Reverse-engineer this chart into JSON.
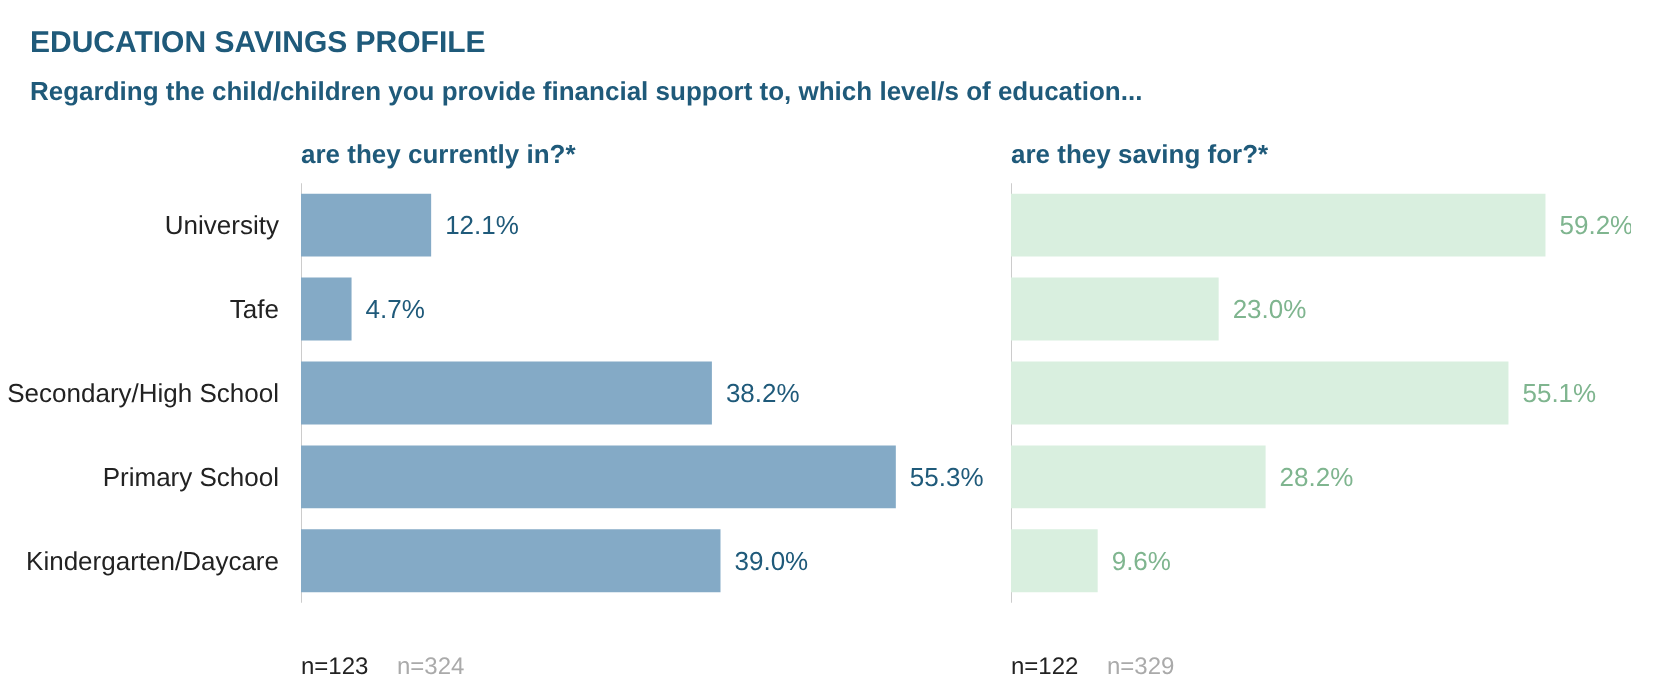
{
  "chart_data": [
    {
      "type": "other",
      "title": "EDUCATION SAVINGS PROFILE",
      "subtitle": "Regarding the child/children you provide financial support to, which level/s of education..."
    },
    {
      "type": "bar",
      "orientation": "horizontal",
      "title": "are they currently in?*",
      "categories": [
        "University",
        "Tafe",
        "Secondary/High School",
        "Primary School",
        "Kindergarten/Daycare"
      ],
      "series": [
        {
          "color": "#84aac6",
          "values": [
            12.1,
            4.7,
            38.2,
            55.3,
            39.0
          ],
          "value_labels": [
            "12.1%",
            "4.7%",
            "38.2%",
            "55.3%",
            "39.0%"
          ]
        }
      ],
      "tick_labels": "y",
      "annotations": [
        "n=123",
        "n=324"
      ]
    },
    {
      "type": "bar",
      "orientation": "horizontal",
      "title": "are they saving for?*",
      "categories": [
        null,
        null,
        null,
        null,
        null
      ],
      "series": [
        {
          "color": "#d9efdf",
          "values": [
            59.2,
            23.0,
            55.1,
            28.2,
            9.6
          ],
          "value_labels": [
            "59.2%",
            "23.0%",
            "55.1%",
            "28.2%",
            "9.6%"
          ]
        }
      ],
      "tick_labels": false,
      "annotations": [
        "n=122",
        "n=329"
      ]
    }
  ]
}
